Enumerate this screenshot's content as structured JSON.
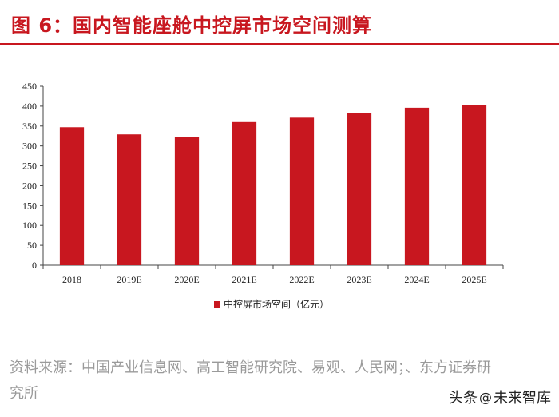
{
  "header": {
    "title": "图 6：国内智能座舱中控屏市场空间测算"
  },
  "chart_data": {
    "type": "bar",
    "categories": [
      "2018",
      "2019E",
      "2020E",
      "2021E",
      "2022E",
      "2023E",
      "2024E",
      "2025E"
    ],
    "values": [
      347,
      329,
      322,
      360,
      371,
      383,
      396,
      403
    ],
    "title": "",
    "xlabel": "",
    "ylabel": "",
    "ylim": [
      0,
      450
    ],
    "yticks": [
      0,
      50,
      100,
      150,
      200,
      250,
      300,
      350,
      400,
      450
    ],
    "grid": false,
    "legend": "bottom",
    "series": [
      {
        "name": "中控屏市场空间（亿元）"
      }
    ],
    "bar_color": "#c8171f"
  },
  "footer": {
    "source_line1": "资料来源：中国产业信息网、高工智能研究院、易观、人民网；、东方证券研",
    "source_line2": "究所",
    "watermark_prefix": "头条",
    "watermark_at": "@",
    "watermark_name": "未来智库"
  },
  "colors": {
    "accent": "#c8171f",
    "muted": "#9a9a9a"
  }
}
